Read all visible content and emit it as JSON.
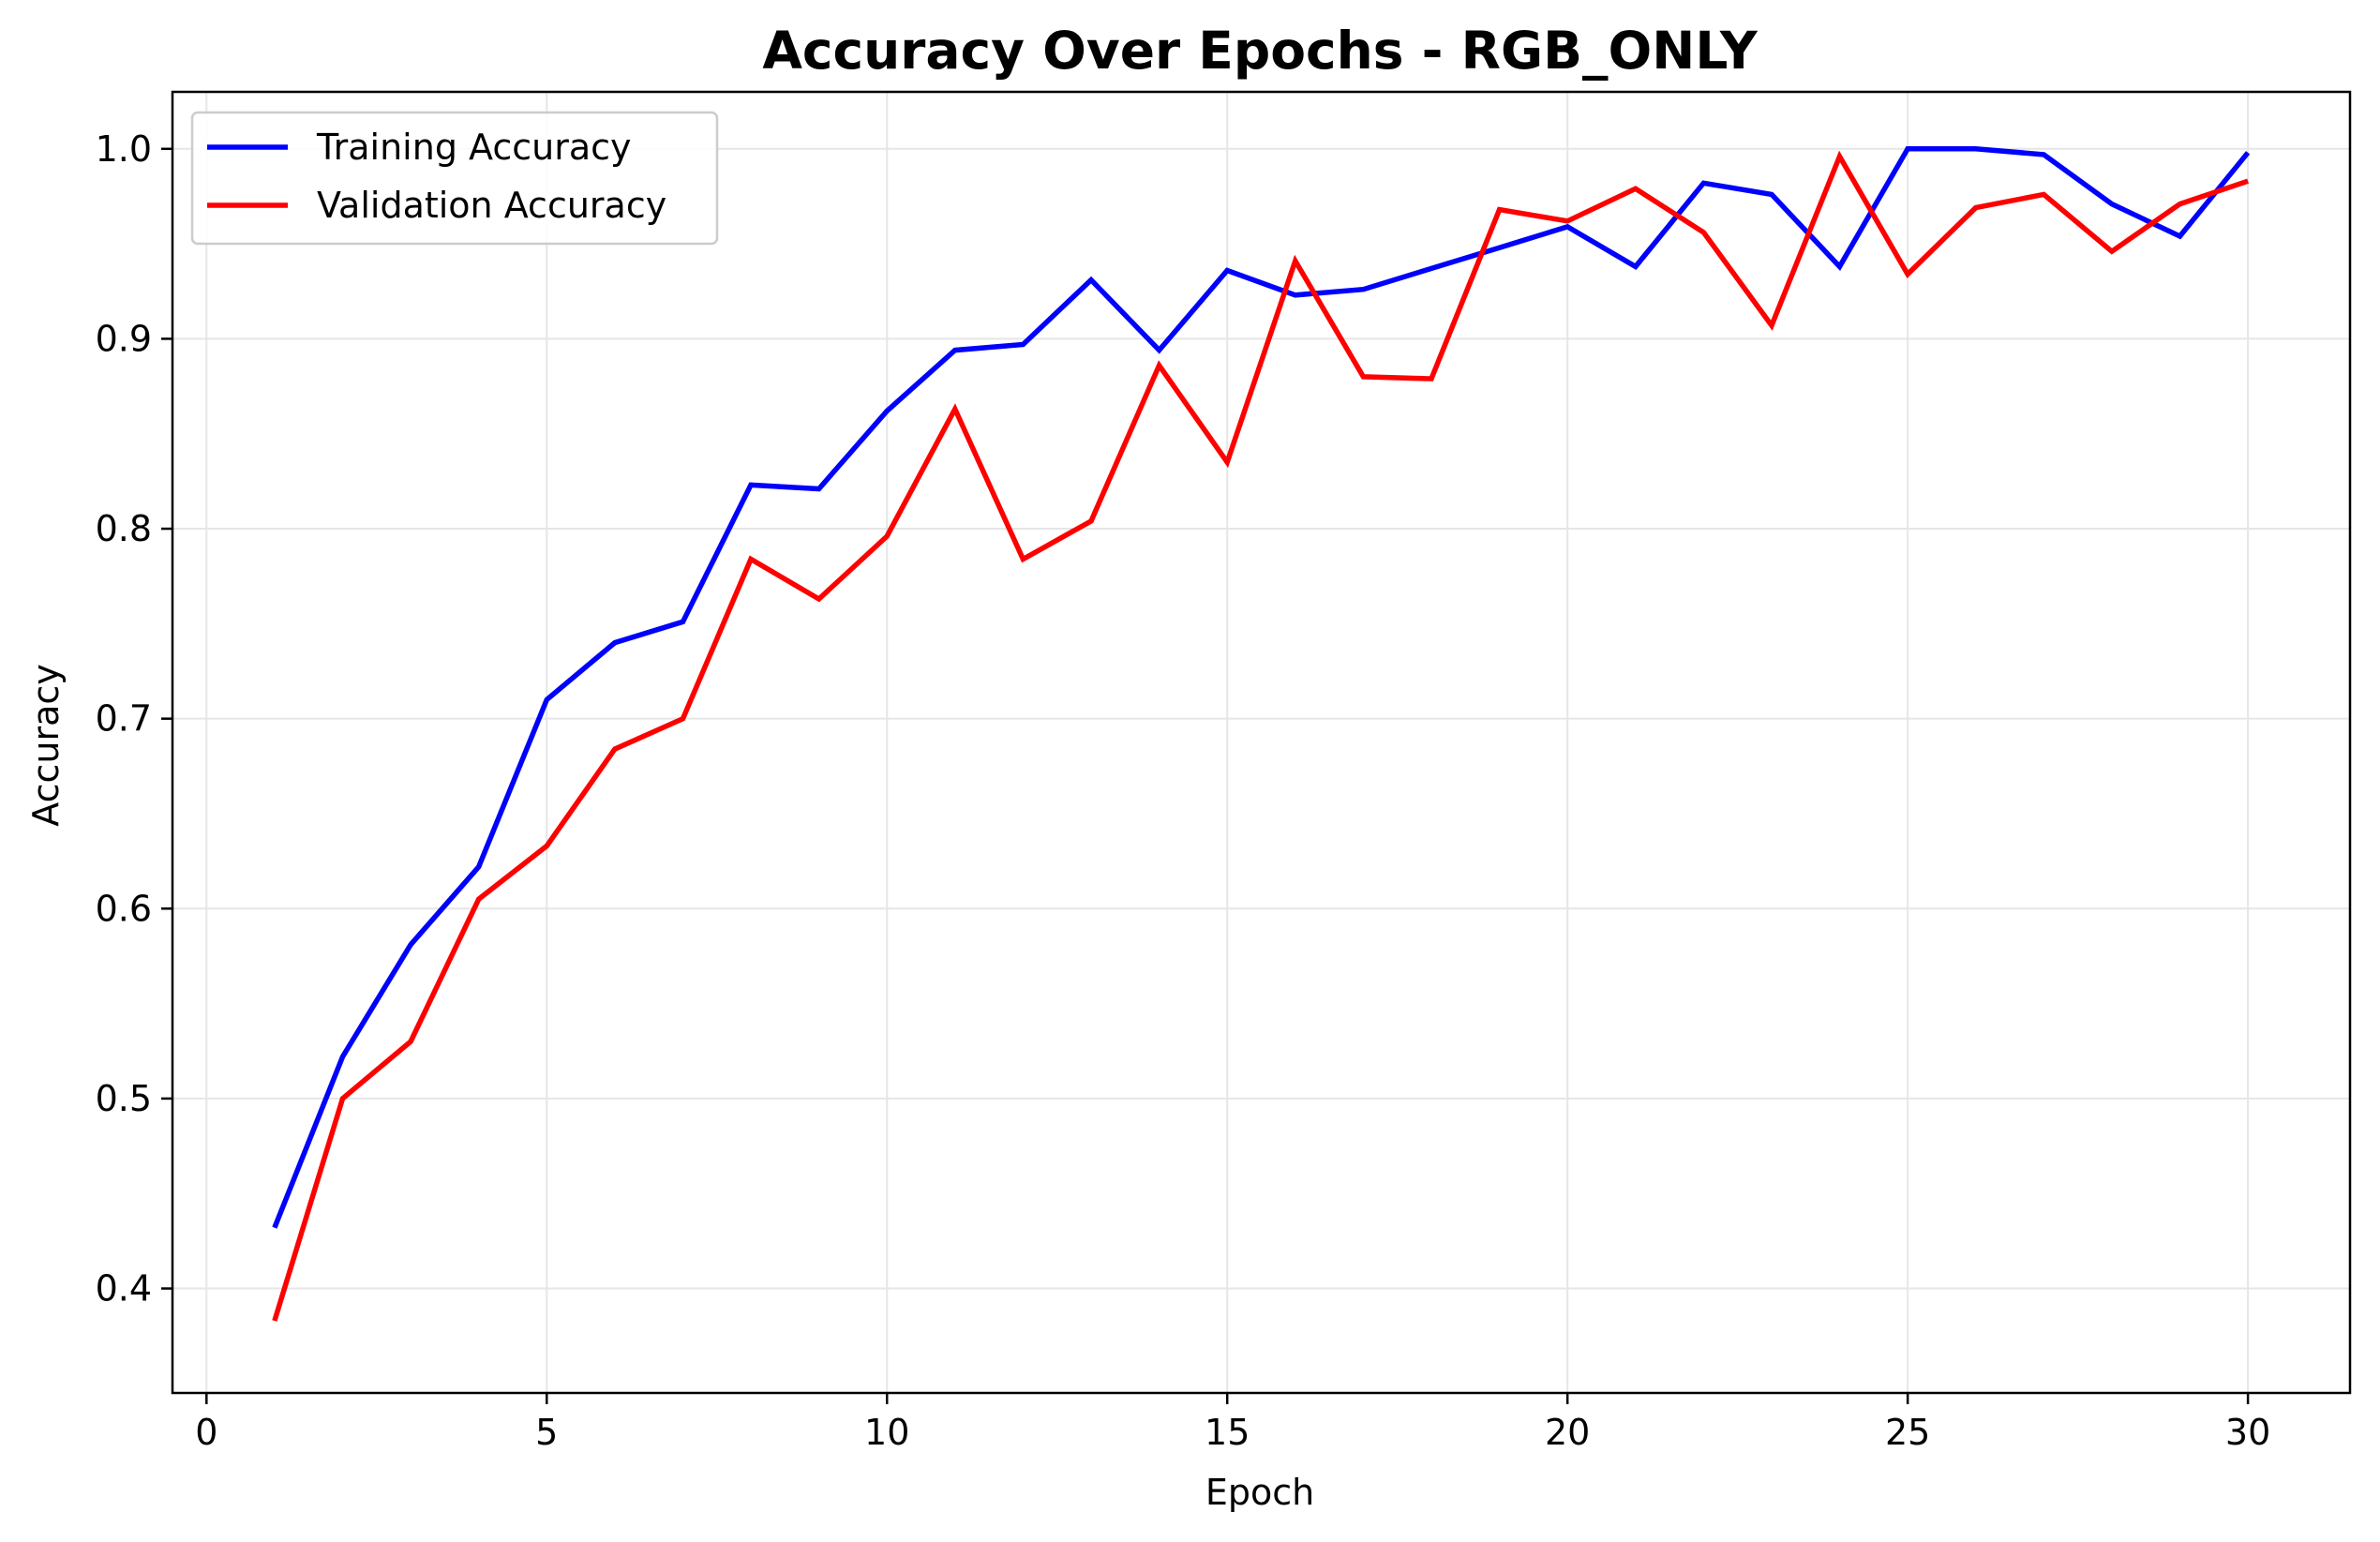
{
  "chart_data": {
    "type": "line",
    "title": "Accuracy Over Epochs - RGB_ONLY",
    "xlabel": "Epoch",
    "ylabel": "Accuracy",
    "xlim": [
      -0.5,
      31.5
    ],
    "ylim": [
      0.345,
      1.03
    ],
    "x_ticks": [
      0,
      5,
      10,
      15,
      20,
      25,
      30
    ],
    "y_ticks": [
      0.4,
      0.5,
      0.6,
      0.7,
      0.8,
      0.9,
      1.0
    ],
    "y_tick_labels": [
      "0.4",
      "0.5",
      "0.6",
      "0.7",
      "0.8",
      "0.9",
      "1.0"
    ],
    "grid": true,
    "legend_position": "top-left",
    "x": [
      1,
      2,
      3,
      4,
      5,
      6,
      7,
      8,
      9,
      10,
      11,
      12,
      13,
      14,
      15,
      16,
      17,
      18,
      19,
      20,
      21,
      22,
      23,
      24,
      25,
      26,
      27,
      28,
      29,
      30
    ],
    "series": [
      {
        "name": "Training Accuracy",
        "color": "#0000ff",
        "values": [
          0.432,
          0.522,
          0.581,
          0.622,
          0.71,
          0.74,
          0.751,
          0.823,
          0.821,
          0.862,
          0.894,
          0.897,
          0.931,
          0.894,
          0.936,
          0.923,
          0.926,
          0.937,
          0.948,
          0.959,
          0.938,
          0.982,
          0.976,
          0.938,
          1.0,
          1.0,
          0.997,
          0.971,
          0.954,
          0.998
        ]
      },
      {
        "name": "Validation Accuracy",
        "color": "#ff0000",
        "values": [
          0.383,
          0.5,
          0.53,
          0.605,
          0.633,
          0.684,
          0.7,
          0.784,
          0.763,
          0.796,
          0.863,
          0.784,
          0.804,
          0.886,
          0.835,
          0.941,
          0.88,
          0.879,
          0.968,
          0.962,
          0.979,
          0.956,
          0.907,
          0.996,
          0.934,
          0.969,
          0.976,
          0.946,
          0.971,
          0.983
        ]
      }
    ]
  },
  "colors": {
    "grid": "#e6e6e6",
    "axis": "#000000",
    "legend_border": "#cccccc"
  }
}
